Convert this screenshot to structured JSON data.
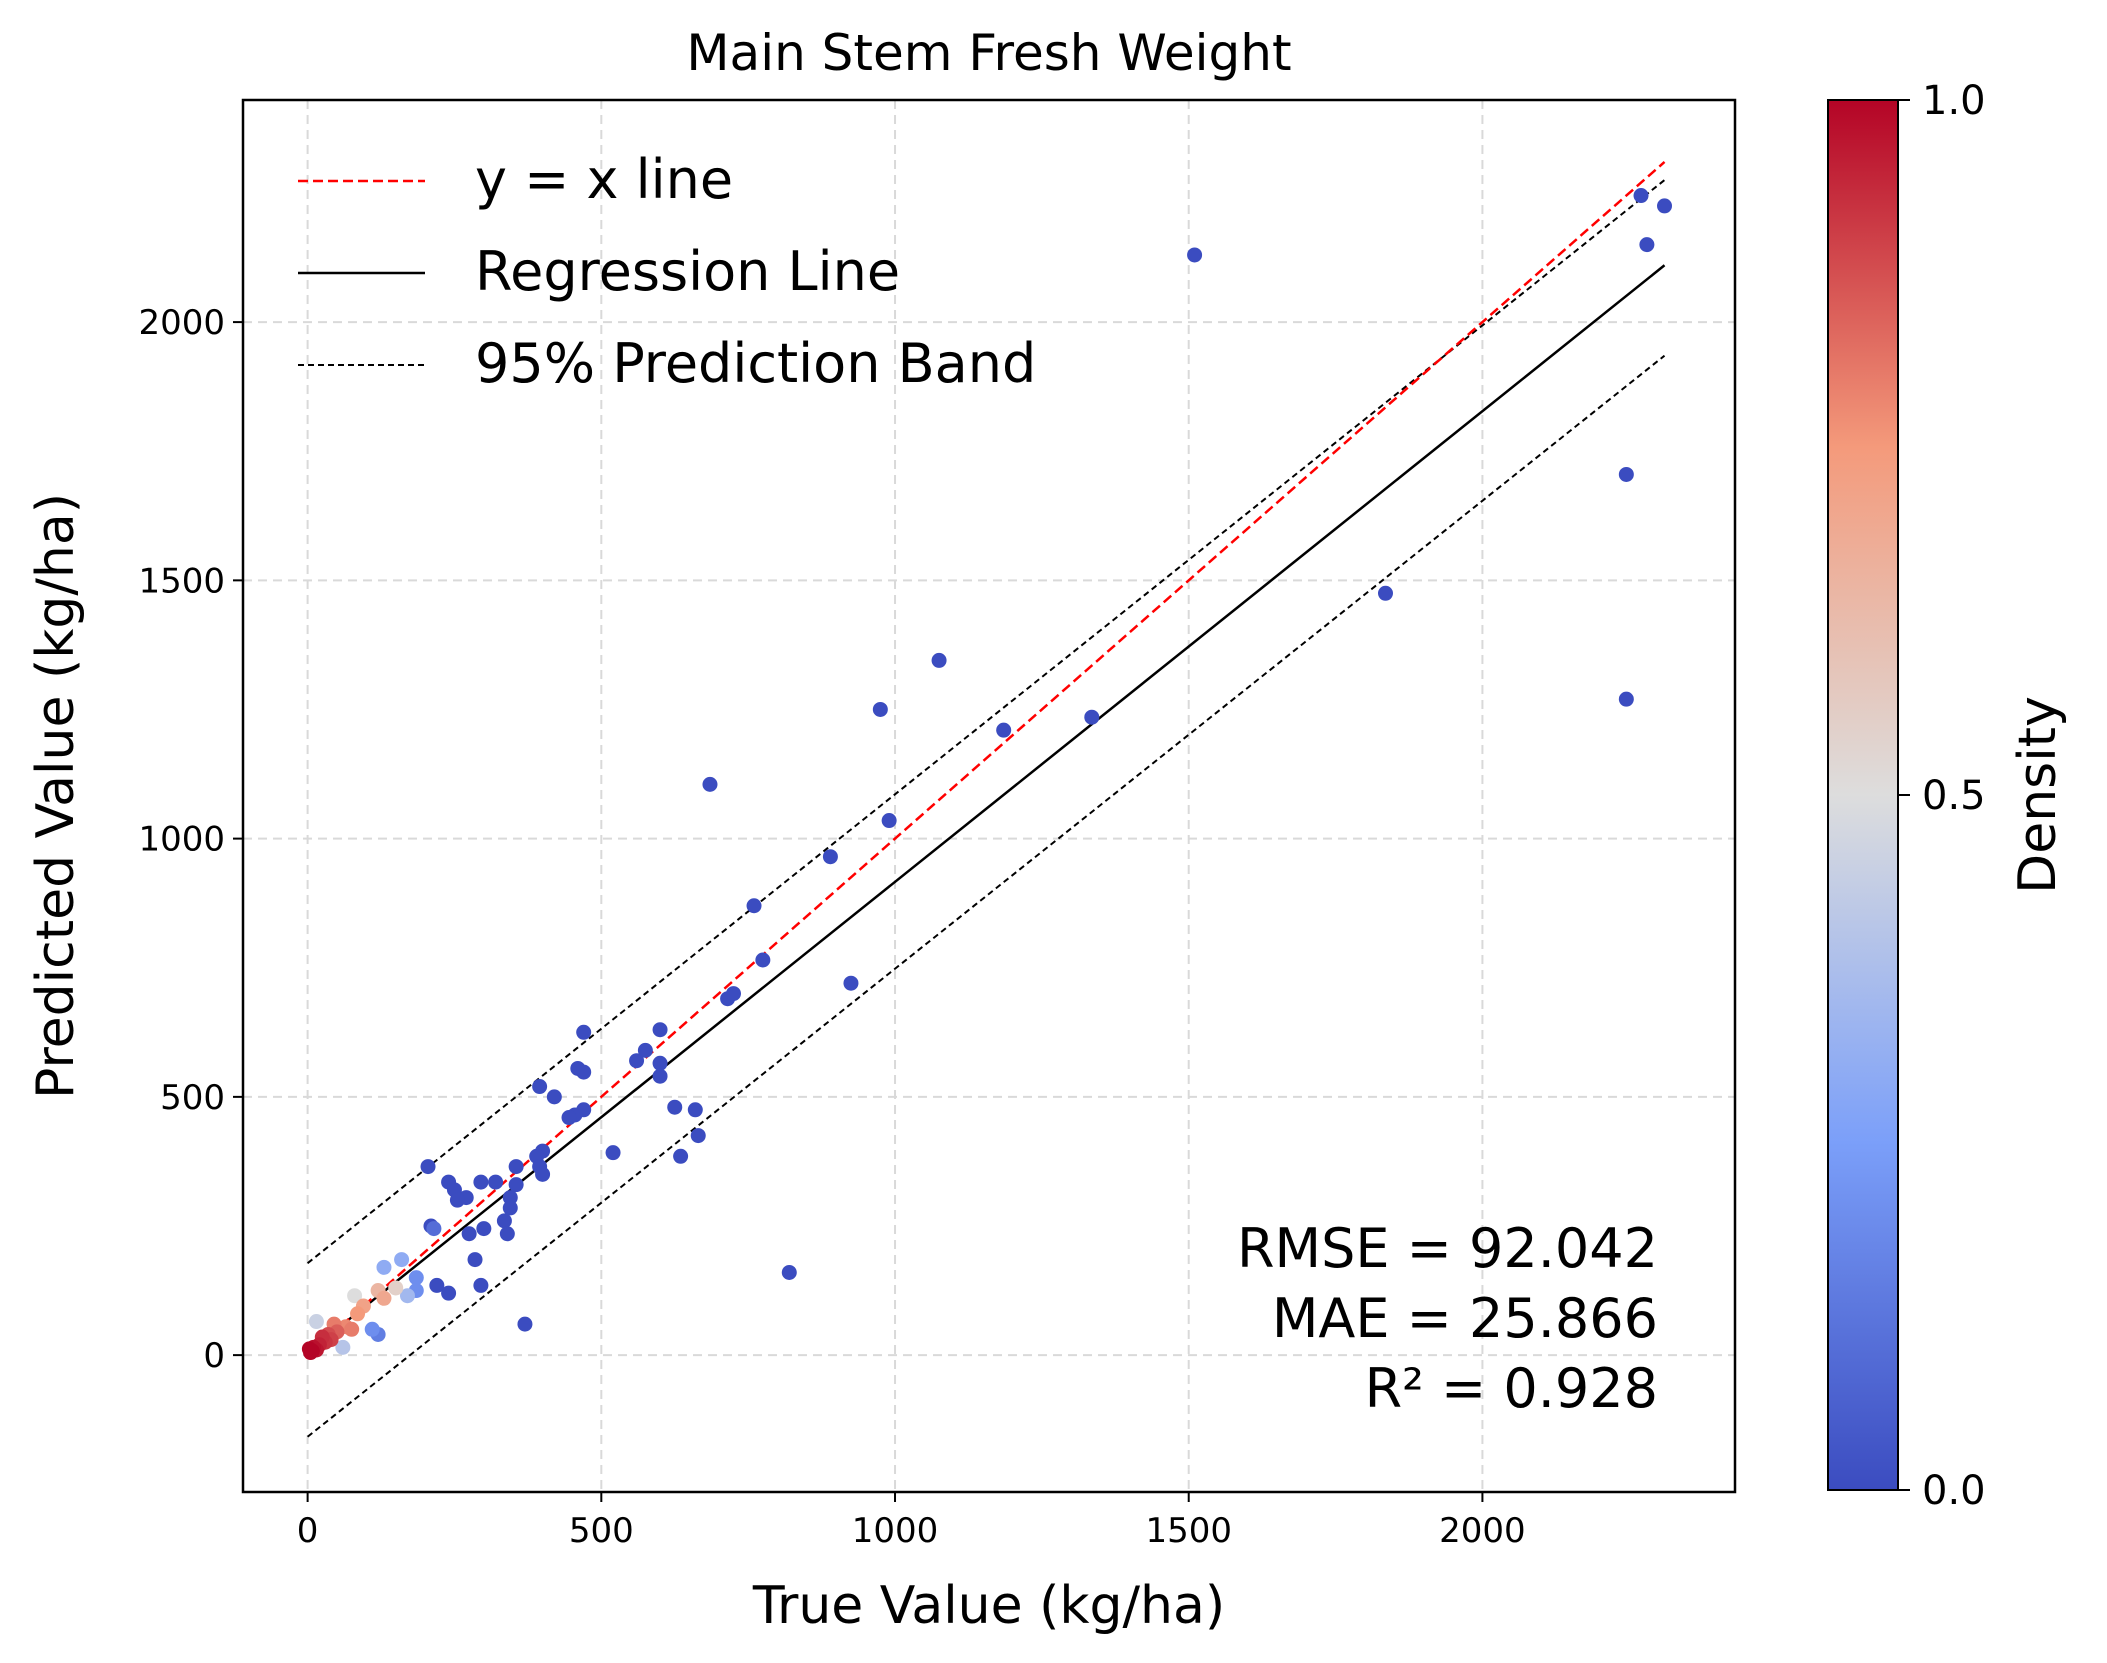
{
  "chart_data": {
    "type": "scatter",
    "title": "Main Stem Fresh Weight",
    "xlabel": "True Value (kg/ha)",
    "ylabel": "Predicted Value (kg/ha)",
    "xlim": [
      -110,
      2430
    ],
    "ylim": [
      -265,
      2430
    ],
    "x_ticks": [
      0,
      500,
      1000,
      1500,
      2000
    ],
    "y_ticks": [
      0,
      500,
      1000,
      1500,
      2000
    ],
    "grid": true,
    "legend": {
      "placement": "top-left",
      "entries": [
        {
          "label": "y = x line",
          "style": "dashed",
          "color": "#ff0000"
        },
        {
          "label": "Regression Line",
          "style": "solid",
          "color": "#000000"
        },
        {
          "label": "95% Prediction Band",
          "style": "dashed",
          "color": "#000000"
        }
      ]
    },
    "lines": {
      "identity": {
        "x": [
          0,
          2310
        ],
        "y": [
          0,
          2310
        ]
      },
      "regression": {
        "x": [
          0,
          2310
        ],
        "y": [
          5,
          2110
        ]
      },
      "band_upper": {
        "x": [
          0,
          2310
        ],
        "y": [
          178,
          2275
        ]
      },
      "band_lower": {
        "x": [
          0,
          2310
        ],
        "y": [
          -158,
          1935
        ]
      }
    },
    "metrics": [
      "RMSE = 92.042",
      "MAE = 25.866",
      "R² = 0.928"
    ],
    "colorbar": {
      "label": "Density",
      "colormap": "coolwarm",
      "ticks": [
        "0.0",
        "0.5",
        "1.0"
      ],
      "range": [
        0,
        1
      ],
      "colors": [
        "#3b4cc0",
        "#dddddd",
        "#b40426"
      ]
    },
    "points": [
      {
        "x": 1510,
        "y": 2130,
        "d": 0.0
      },
      {
        "x": 2270,
        "y": 2245,
        "d": 0.0
      },
      {
        "x": 2310,
        "y": 2225,
        "d": 0.0
      },
      {
        "x": 2280,
        "y": 2150,
        "d": 0.0
      },
      {
        "x": 2245,
        "y": 1705,
        "d": 0.0
      },
      {
        "x": 2245,
        "y": 1270,
        "d": 0.0
      },
      {
        "x": 1835,
        "y": 1475,
        "d": 0.0
      },
      {
        "x": 1075,
        "y": 1345,
        "d": 0.0
      },
      {
        "x": 975,
        "y": 1250,
        "d": 0.0
      },
      {
        "x": 1185,
        "y": 1210,
        "d": 0.0
      },
      {
        "x": 1335,
        "y": 1235,
        "d": 0.0
      },
      {
        "x": 685,
        "y": 1105,
        "d": 0.0
      },
      {
        "x": 990,
        "y": 1035,
        "d": 0.0
      },
      {
        "x": 890,
        "y": 965,
        "d": 0.0
      },
      {
        "x": 760,
        "y": 870,
        "d": 0.0
      },
      {
        "x": 775,
        "y": 765,
        "d": 0.0
      },
      {
        "x": 925,
        "y": 720,
        "d": 0.0
      },
      {
        "x": 715,
        "y": 690,
        "d": 0.0
      },
      {
        "x": 725,
        "y": 700,
        "d": 0.0
      },
      {
        "x": 470,
        "y": 625,
        "d": 0.0
      },
      {
        "x": 600,
        "y": 630,
        "d": 0.0
      },
      {
        "x": 575,
        "y": 590,
        "d": 0.0
      },
      {
        "x": 560,
        "y": 570,
        "d": 0.0
      },
      {
        "x": 600,
        "y": 565,
        "d": 0.0
      },
      {
        "x": 600,
        "y": 540,
        "d": 0.0
      },
      {
        "x": 460,
        "y": 555,
        "d": 0.0
      },
      {
        "x": 470,
        "y": 548,
        "d": 0.0
      },
      {
        "x": 395,
        "y": 520,
        "d": 0.0
      },
      {
        "x": 420,
        "y": 500,
        "d": 0.0
      },
      {
        "x": 625,
        "y": 480,
        "d": 0.0
      },
      {
        "x": 660,
        "y": 475,
        "d": 0.0
      },
      {
        "x": 470,
        "y": 475,
        "d": 0.0
      },
      {
        "x": 455,
        "y": 465,
        "d": 0.0
      },
      {
        "x": 445,
        "y": 460,
        "d": 0.0
      },
      {
        "x": 665,
        "y": 425,
        "d": 0.0
      },
      {
        "x": 520,
        "y": 392,
        "d": 0.0
      },
      {
        "x": 635,
        "y": 385,
        "d": 0.0
      },
      {
        "x": 400,
        "y": 395,
        "d": 0.0
      },
      {
        "x": 390,
        "y": 385,
        "d": 0.0
      },
      {
        "x": 205,
        "y": 365,
        "d": 0.0
      },
      {
        "x": 355,
        "y": 365,
        "d": 0.0
      },
      {
        "x": 395,
        "y": 365,
        "d": 0.0
      },
      {
        "x": 400,
        "y": 350,
        "d": 0.0
      },
      {
        "x": 240,
        "y": 335,
        "d": 0.0
      },
      {
        "x": 295,
        "y": 335,
        "d": 0.0
      },
      {
        "x": 320,
        "y": 335,
        "d": 0.0
      },
      {
        "x": 355,
        "y": 330,
        "d": 0.0
      },
      {
        "x": 250,
        "y": 320,
        "d": 0.0
      },
      {
        "x": 270,
        "y": 305,
        "d": 0.0
      },
      {
        "x": 255,
        "y": 300,
        "d": 0.0
      },
      {
        "x": 345,
        "y": 305,
        "d": 0.0
      },
      {
        "x": 345,
        "y": 285,
        "d": 0.0
      },
      {
        "x": 335,
        "y": 260,
        "d": 0.0
      },
      {
        "x": 210,
        "y": 250,
        "d": 0.0
      },
      {
        "x": 300,
        "y": 245,
        "d": 0.0
      },
      {
        "x": 275,
        "y": 235,
        "d": 0.0
      },
      {
        "x": 340,
        "y": 235,
        "d": 0.0
      },
      {
        "x": 285,
        "y": 185,
        "d": 0.0
      },
      {
        "x": 820,
        "y": 160,
        "d": 0.0
      },
      {
        "x": 295,
        "y": 135,
        "d": 0.0
      },
      {
        "x": 220,
        "y": 135,
        "d": 0.0
      },
      {
        "x": 240,
        "y": 120,
        "d": 0.0
      },
      {
        "x": 370,
        "y": 60,
        "d": 0.0
      },
      {
        "x": 215,
        "y": 245,
        "d": 0.1
      },
      {
        "x": 185,
        "y": 150,
        "d": 0.2
      },
      {
        "x": 160,
        "y": 185,
        "d": 0.3
      },
      {
        "x": 130,
        "y": 170,
        "d": 0.3
      },
      {
        "x": 170,
        "y": 115,
        "d": 0.35
      },
      {
        "x": 185,
        "y": 125,
        "d": 0.2
      },
      {
        "x": 110,
        "y": 50,
        "d": 0.2
      },
      {
        "x": 120,
        "y": 40,
        "d": 0.15
      },
      {
        "x": 60,
        "y": 15,
        "d": 0.4
      },
      {
        "x": 15,
        "y": 65,
        "d": 0.45
      },
      {
        "x": 80,
        "y": 115,
        "d": 0.5
      },
      {
        "x": 150,
        "y": 130,
        "d": 0.55
      },
      {
        "x": 120,
        "y": 125,
        "d": 0.65
      },
      {
        "x": 130,
        "y": 110,
        "d": 0.7
      },
      {
        "x": 95,
        "y": 95,
        "d": 0.72
      },
      {
        "x": 85,
        "y": 80,
        "d": 0.75
      },
      {
        "x": 65,
        "y": 55,
        "d": 0.78
      },
      {
        "x": 75,
        "y": 50,
        "d": 0.8
      },
      {
        "x": 45,
        "y": 60,
        "d": 0.8
      },
      {
        "x": 50,
        "y": 45,
        "d": 0.85
      },
      {
        "x": 35,
        "y": 40,
        "d": 0.88
      },
      {
        "x": 40,
        "y": 30,
        "d": 0.9
      },
      {
        "x": 30,
        "y": 25,
        "d": 0.92
      },
      {
        "x": 25,
        "y": 35,
        "d": 0.93
      },
      {
        "x": 20,
        "y": 20,
        "d": 0.95
      },
      {
        "x": 15,
        "y": 10,
        "d": 0.97
      },
      {
        "x": 10,
        "y": 15,
        "d": 0.98
      },
      {
        "x": 5,
        "y": 5,
        "d": 1.0
      },
      {
        "x": 8,
        "y": 8,
        "d": 1.0
      },
      {
        "x": 3,
        "y": 12,
        "d": 1.0
      }
    ]
  }
}
